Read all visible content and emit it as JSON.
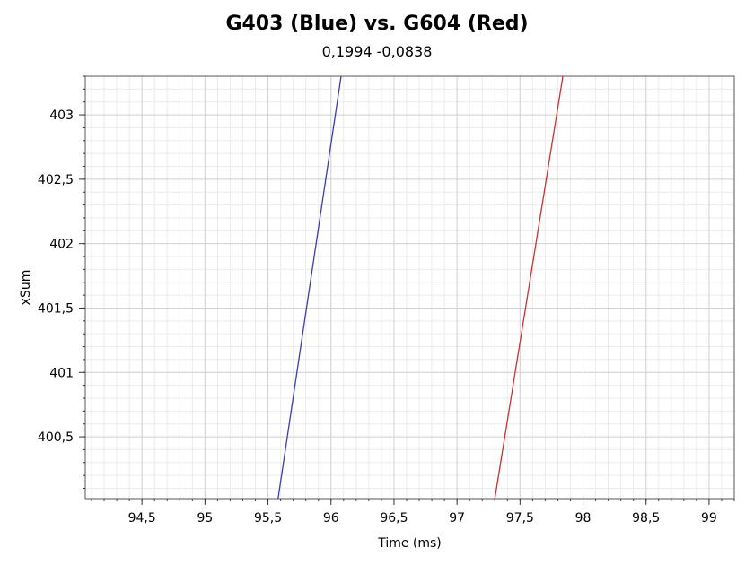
{
  "chart_data": {
    "type": "line",
    "title": "G403 (Blue) vs. G604 (Red)",
    "subtitle": "0,1994 -0,0838",
    "xlabel": "Time (ms)",
    "ylabel": "xSum",
    "xlim": [
      94.05,
      99.2
    ],
    "ylim": [
      400.02,
      403.3
    ],
    "x_ticks": [
      94.5,
      95,
      95.5,
      96,
      96.5,
      97,
      97.5,
      98,
      98.5,
      99
    ],
    "x_tick_labels": [
      "94,5",
      "95",
      "95,5",
      "96",
      "96,5",
      "97",
      "97,5",
      "98",
      "98,5",
      "99"
    ],
    "y_ticks": [
      400.5,
      401,
      401.5,
      402,
      402.5,
      403
    ],
    "y_tick_labels": [
      "400,5",
      "401",
      "401,5",
      "402",
      "402,5",
      "403"
    ],
    "grid": true,
    "series": [
      {
        "color": "#3b3bb8",
        "x": [
          95.58,
          96.08
        ],
        "y": [
          400.02,
          403.3
        ]
      },
      {
        "color": "#c83232",
        "x": [
          97.3,
          97.84
        ],
        "y": [
          400.02,
          403.3
        ]
      }
    ]
  }
}
